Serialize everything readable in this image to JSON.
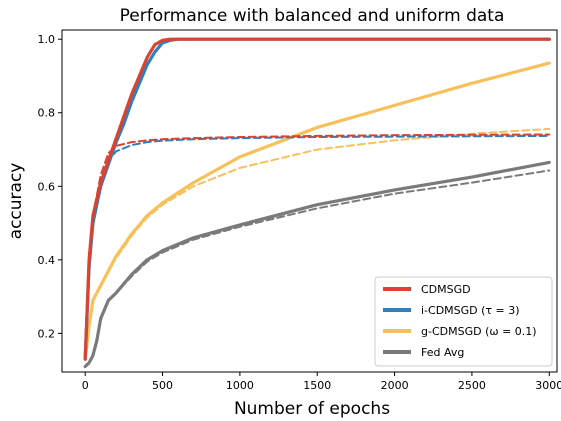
{
  "chart_data": {
    "type": "line",
    "title": "Performance with balanced and uniform data",
    "xlabel": "Number of epochs",
    "ylabel": "accuracy",
    "xlim": [
      -150,
      3050
    ],
    "ylim": [
      0.095,
      1.025
    ],
    "xticks": [
      0,
      500,
      1000,
      1500,
      2000,
      2500,
      3000
    ],
    "yticks": [
      0.2,
      0.4,
      0.6,
      0.8,
      1.0
    ],
    "ytick_labels": [
      "0.2",
      "0.4",
      "0.6",
      "0.8",
      "1.0"
    ],
    "grid": false,
    "legend_position": "bottom-right",
    "legend": [
      {
        "label": "CDMSGD",
        "color": "#d9432f"
      },
      {
        "label": "i-CDMSGD (τ = 3)",
        "color": "#2f7fc1"
      },
      {
        "label": "g-CDMSGD (ω = 0.1)",
        "color": "#f8c05a"
      },
      {
        "label": "Fed Avg",
        "color": "#7a7a7a"
      }
    ],
    "series": [
      {
        "name": "CDMSGD",
        "line_style": "solid",
        "color": "#d9432f",
        "x": [
          0,
          25,
          50,
          100,
          150,
          200,
          250,
          300,
          350,
          400,
          450,
          500,
          550,
          600,
          1000,
          2000,
          3000
        ],
        "y": [
          0.13,
          0.4,
          0.52,
          0.61,
          0.67,
          0.73,
          0.79,
          0.85,
          0.9,
          0.95,
          0.985,
          0.997,
          1.0,
          1.0,
          1.0,
          1.0,
          1.0
        ]
      },
      {
        "name": "CDMSGD",
        "line_style": "dashed",
        "color": "#d9432f",
        "x": [
          0,
          25,
          50,
          100,
          150,
          200,
          300,
          400,
          500,
          700,
          1000,
          1500,
          2000,
          2500,
          3000
        ],
        "y": [
          0.13,
          0.4,
          0.52,
          0.63,
          0.69,
          0.71,
          0.72,
          0.725,
          0.728,
          0.731,
          0.734,
          0.737,
          0.739,
          0.74,
          0.741
        ]
      },
      {
        "name": "i-CDMSGD (τ = 3)",
        "line_style": "solid",
        "color": "#2f7fc1",
        "x": [
          0,
          25,
          50,
          100,
          150,
          200,
          250,
          300,
          350,
          400,
          450,
          500,
          550,
          600,
          650,
          1000,
          2000,
          3000
        ],
        "y": [
          0.13,
          0.38,
          0.5,
          0.6,
          0.66,
          0.72,
          0.77,
          0.83,
          0.88,
          0.93,
          0.965,
          0.99,
          0.997,
          1.0,
          1.0,
          1.0,
          1.0,
          1.0
        ]
      },
      {
        "name": "i-CDMSGD (τ = 3)",
        "line_style": "dashed",
        "color": "#2f7fc1",
        "x": [
          0,
          25,
          50,
          100,
          150,
          200,
          300,
          400,
          500,
          700,
          1000,
          1500,
          2000,
          2500,
          3000
        ],
        "y": [
          0.13,
          0.37,
          0.49,
          0.61,
          0.67,
          0.695,
          0.712,
          0.72,
          0.724,
          0.728,
          0.731,
          0.734,
          0.735,
          0.736,
          0.737
        ]
      },
      {
        "name": "g-CDMSGD (ω = 0.1)",
        "line_style": "solid",
        "color": "#f8c05a",
        "x": [
          0,
          25,
          50,
          100,
          150,
          200,
          300,
          400,
          500,
          700,
          1000,
          1500,
          2000,
          2500,
          3000
        ],
        "y": [
          0.13,
          0.22,
          0.29,
          0.33,
          0.37,
          0.41,
          0.47,
          0.52,
          0.555,
          0.61,
          0.68,
          0.76,
          0.82,
          0.88,
          0.935
        ]
      },
      {
        "name": "g-CDMSGD (ω = 0.1)",
        "line_style": "dashed",
        "color": "#f8c05a",
        "x": [
          0,
          25,
          50,
          100,
          150,
          200,
          300,
          400,
          500,
          700,
          1000,
          1500,
          2000,
          2500,
          3000
        ],
        "y": [
          0.13,
          0.22,
          0.29,
          0.33,
          0.37,
          0.405,
          0.465,
          0.515,
          0.55,
          0.6,
          0.65,
          0.7,
          0.725,
          0.743,
          0.756
        ]
      },
      {
        "name": "Fed Avg",
        "line_style": "solid",
        "color": "#7a7a7a",
        "x": [
          0,
          25,
          50,
          75,
          100,
          150,
          200,
          300,
          400,
          500,
          700,
          1000,
          1500,
          2000,
          2500,
          3000
        ],
        "y": [
          0.11,
          0.12,
          0.14,
          0.18,
          0.24,
          0.29,
          0.31,
          0.36,
          0.4,
          0.425,
          0.46,
          0.495,
          0.55,
          0.59,
          0.625,
          0.665
        ]
      },
      {
        "name": "Fed Avg",
        "line_style": "dashed",
        "color": "#7a7a7a",
        "x": [
          0,
          25,
          50,
          75,
          100,
          150,
          200,
          300,
          400,
          500,
          700,
          1000,
          1500,
          2000,
          2500,
          3000
        ],
        "y": [
          0.11,
          0.12,
          0.14,
          0.18,
          0.24,
          0.29,
          0.31,
          0.355,
          0.395,
          0.42,
          0.455,
          0.49,
          0.54,
          0.58,
          0.61,
          0.643
        ]
      }
    ]
  }
}
